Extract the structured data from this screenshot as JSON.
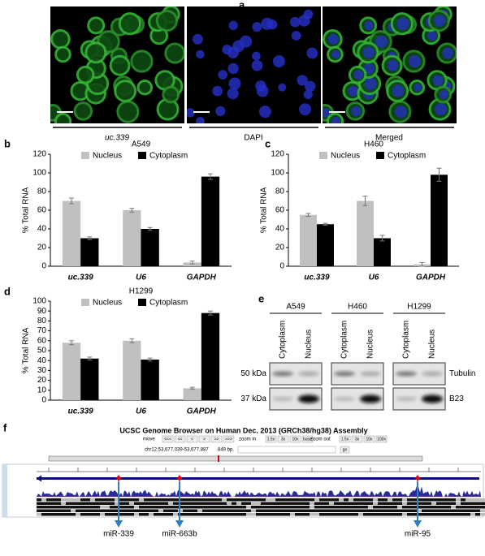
{
  "a": {
    "label": "a",
    "images": [
      "uc.339",
      "DAPI",
      "Merged"
    ]
  },
  "chart_data": [
    {
      "type": "bar",
      "panel": "b",
      "title": "A549",
      "ylabel": "% Total RNA",
      "categories": [
        "uc.339",
        "U6",
        "GAPDH"
      ],
      "ylim": [
        0,
        120
      ],
      "yticks": [
        0,
        20,
        40,
        60,
        80,
        100,
        120
      ],
      "series": [
        {
          "name": "Nucleus",
          "color": "#c0c0c0",
          "values": [
            70,
            60,
            4
          ],
          "errors": [
            3,
            2,
            1.5
          ]
        },
        {
          "name": "Cytoplasm",
          "color": "#000000",
          "values": [
            30,
            40,
            96
          ],
          "errors": [
            1.5,
            1.5,
            3
          ]
        }
      ]
    },
    {
      "type": "bar",
      "panel": "c",
      "title": "H460",
      "ylabel": "% Total RNA",
      "categories": [
        "uc.339",
        "U6",
        "GAPDH"
      ],
      "ylim": [
        0,
        120
      ],
      "yticks": [
        0,
        20,
        40,
        60,
        80,
        100,
        120
      ],
      "series": [
        {
          "name": "Nucleus",
          "color": "#c0c0c0",
          "values": [
            55,
            70,
            2
          ],
          "errors": [
            1.5,
            5,
            2
          ]
        },
        {
          "name": "Cytoplasm",
          "color": "#000000",
          "values": [
            45,
            30,
            98
          ],
          "errors": [
            1,
            3,
            7
          ]
        }
      ]
    },
    {
      "type": "bar",
      "panel": "d",
      "title": "H1299",
      "ylabel": "% Total RNA",
      "categories": [
        "uc.339",
        "U6",
        "GAPDH"
      ],
      "ylim": [
        0,
        100
      ],
      "yticks": [
        0,
        10,
        20,
        30,
        40,
        50,
        60,
        70,
        80,
        90,
        100
      ],
      "series": [
        {
          "name": "Nucleus",
          "color": "#c0c0c0",
          "values": [
            58,
            60,
            12
          ],
          "errors": [
            2,
            2,
            1
          ]
        },
        {
          "name": "Cytoplasm",
          "color": "#000000",
          "values": [
            42,
            41,
            88
          ],
          "errors": [
            1.5,
            1.5,
            2
          ]
        }
      ]
    }
  ],
  "e": {
    "label": "e",
    "cell_lines": [
      "A549",
      "H460",
      "H1299"
    ],
    "lanes": [
      "Cytoplasm",
      "Nucleus"
    ],
    "rows": [
      {
        "size": "50 kDa",
        "protein": "Tubulin"
      },
      {
        "size": "37 kDa",
        "protein": "B23"
      }
    ]
  },
  "f": {
    "label": "f",
    "title": "UCSC Genome Browser on Human Dec. 2013 (GRCh38/hg38) Assembly",
    "move": "move",
    "move_buttons": [
      "<<<",
      "<<",
      "<",
      ">",
      ">>",
      ">>>"
    ],
    "zoom_in": "zoom in",
    "zoom_in_buttons": [
      "1.5x",
      "3x",
      "10x",
      "base"
    ],
    "zoom_out": "zoom out",
    "zoom_out_buttons": [
      "1.5x",
      "3x",
      "10x",
      "100x"
    ],
    "position": "chr12:53,677,039-53,677,887",
    "size": "849 bp.",
    "go": "go",
    "mirnas": [
      "miR-339",
      "miR-663b",
      "miR-95"
    ]
  }
}
